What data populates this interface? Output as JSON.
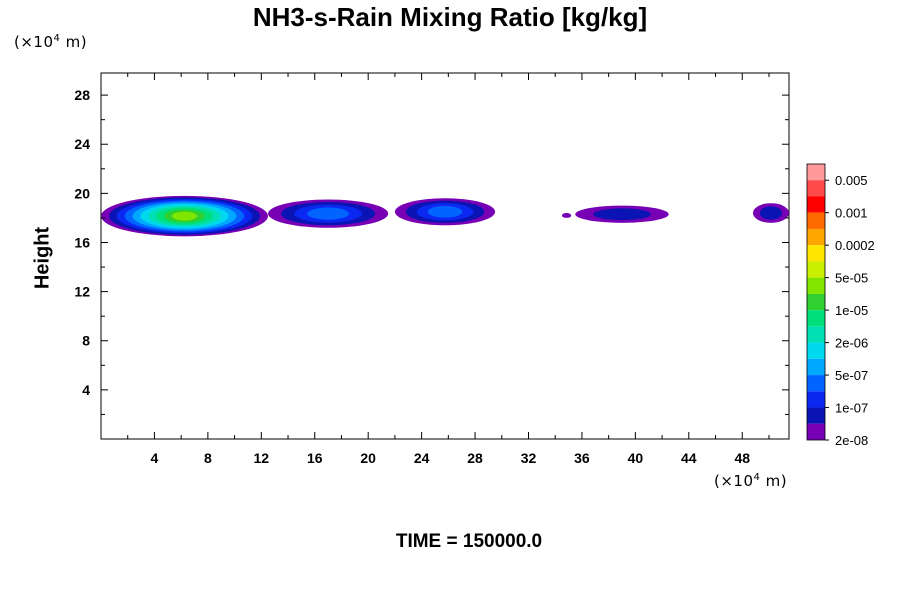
{
  "title": "NH3-s-Rain Mixing Ratio [kg/kg]",
  "y_unit": {
    "prefix": "(×10",
    "exp": "4",
    "suffix": " m)"
  },
  "x_unit": {
    "prefix": "(×10",
    "exp": "4",
    "suffix": " m)"
  },
  "ylabel": "Height",
  "time_label": "TIME = 150000.0",
  "chart_data": {
    "type": "heatmap",
    "title": "NH3-s-Rain Mixing Ratio [kg/kg]",
    "ylabel": "Height",
    "xlim": [
      0,
      51.5
    ],
    "ylim": [
      0,
      29.8
    ],
    "x_ticks": [
      4,
      8,
      12,
      16,
      20,
      24,
      28,
      32,
      36,
      40,
      44,
      48
    ],
    "y_ticks": [
      4,
      8,
      12,
      16,
      20,
      24,
      28
    ],
    "colorbar": {
      "labels": [
        "0.005",
        "0.001",
        "0.0002",
        "5e-05",
        "1e-05",
        "2e-06",
        "5e-07",
        "1e-07",
        "2e-08"
      ],
      "colors_top_to_bottom": [
        "#ff9a9a",
        "#ff4a4a",
        "#ff0000",
        "#ff6a00",
        "#ffa500",
        "#ffe600",
        "#c8f000",
        "#80e600",
        "#2fd02f",
        "#00e07a",
        "#00e0b4",
        "#00d8f0",
        "#00a8ff",
        "#0064ff",
        "#0a28f0",
        "#0a14b4",
        "#7800b4"
      ]
    },
    "features": [
      {
        "x_start": 0,
        "x_end": 12.5,
        "y_bottom": 16.5,
        "y_top": 19.8,
        "max_level": "5e-05"
      },
      {
        "x_start": 12.5,
        "x_end": 21.5,
        "y_bottom": 17.2,
        "y_top": 19.5,
        "max_level": "5e-07"
      },
      {
        "x_start": 22,
        "x_end": 29.5,
        "y_bottom": 17.4,
        "y_top": 19.6,
        "max_level": "5e-07"
      },
      {
        "x_start": 34.5,
        "x_end": 35.2,
        "y_bottom": 18,
        "y_top": 18.4,
        "max_level": "2e-08"
      },
      {
        "x_start": 35.5,
        "x_end": 42.5,
        "y_bottom": 17.6,
        "y_top": 19,
        "max_level": "1e-07"
      },
      {
        "x_start": 48.8,
        "x_end": 51.5,
        "y_bottom": 17.6,
        "y_top": 19.2,
        "max_level": "1e-07"
      }
    ]
  }
}
